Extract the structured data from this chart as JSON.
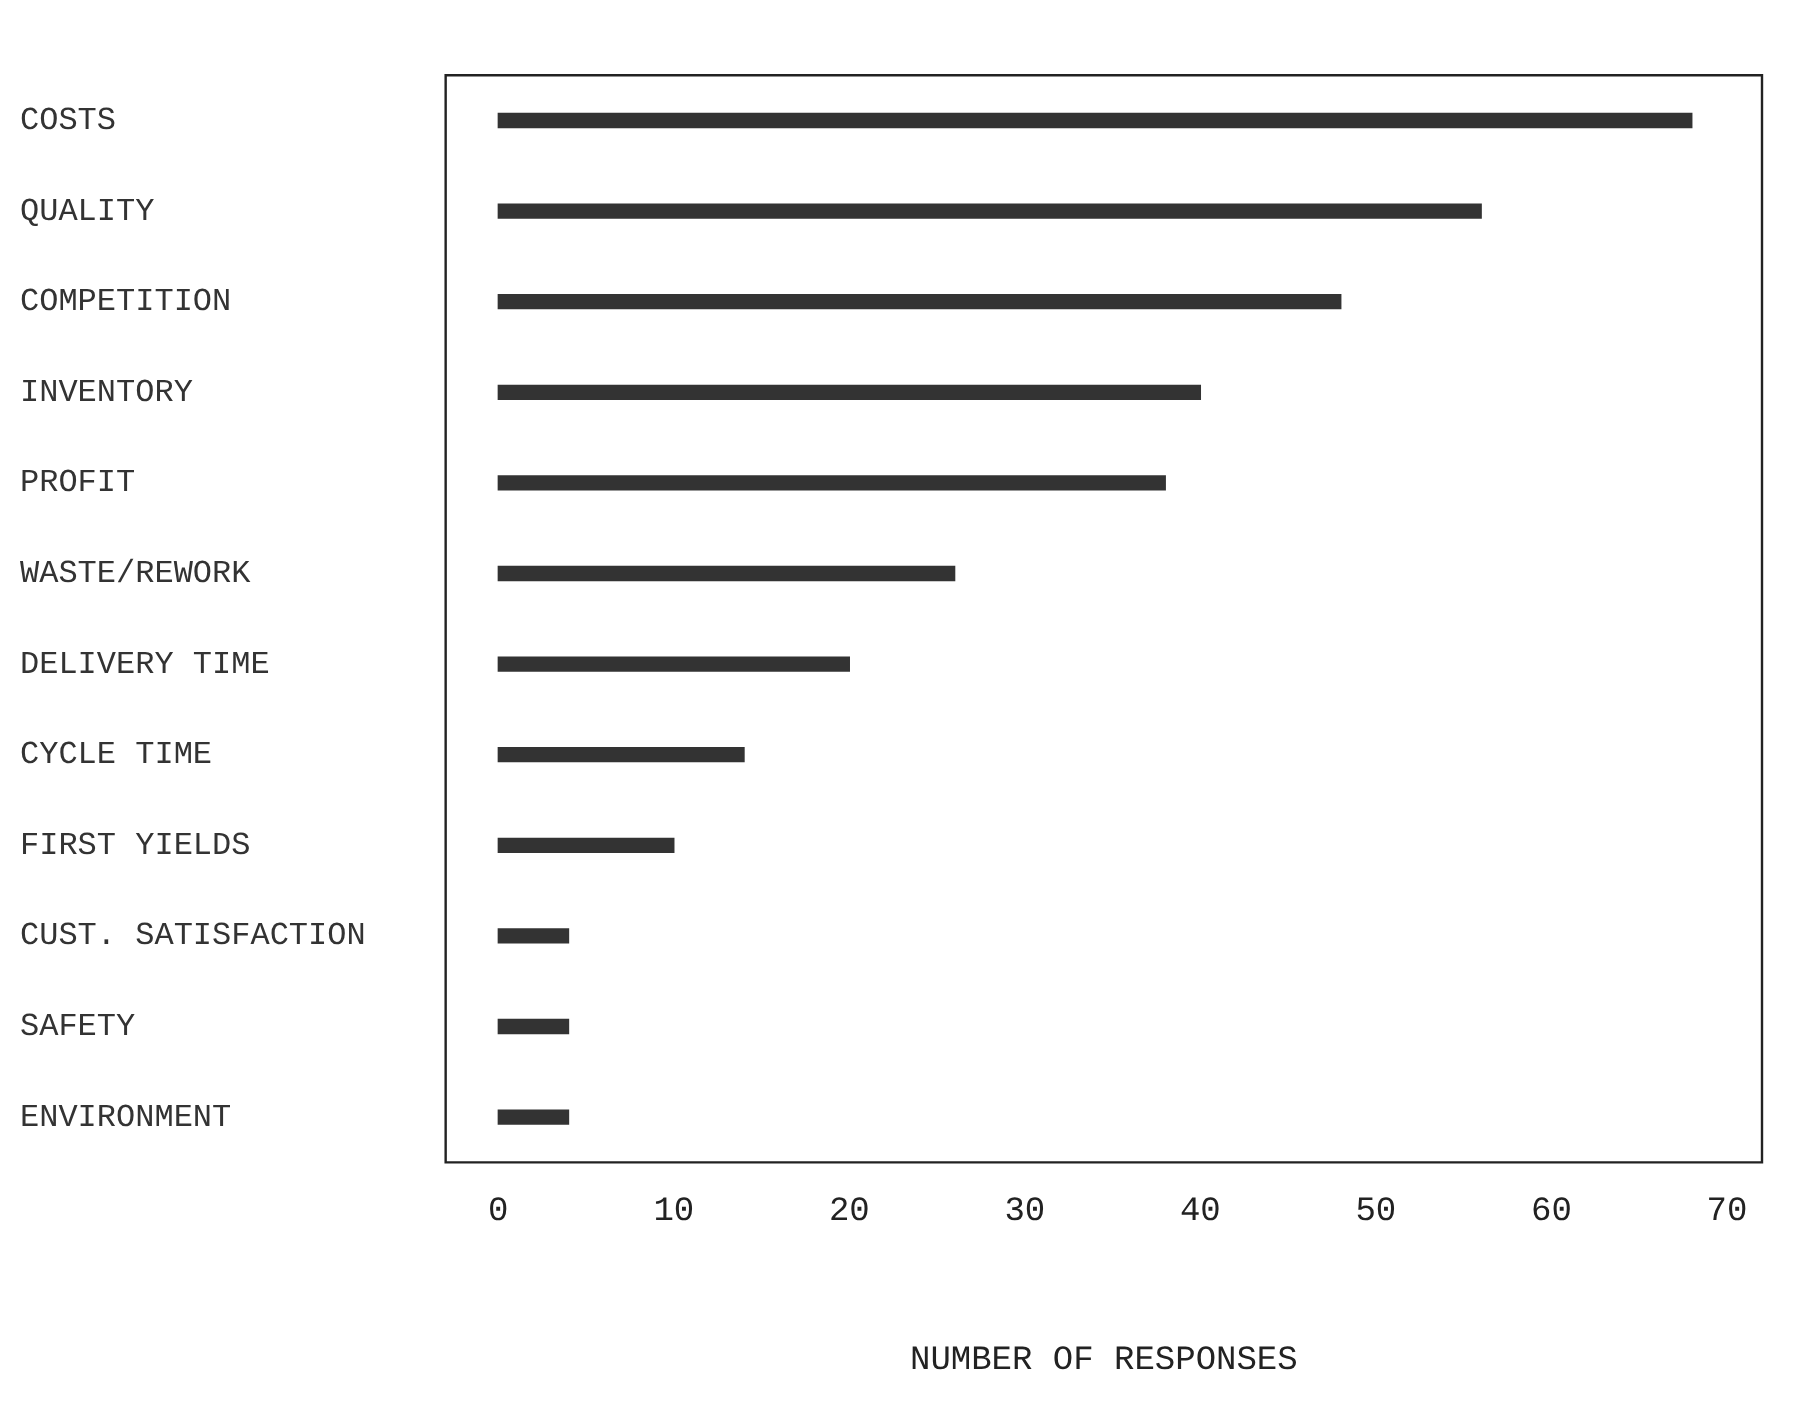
{
  "chart_data": {
    "type": "bar",
    "orientation": "horizontal",
    "categories": [
      "COSTS",
      "QUALITY",
      "COMPETITION",
      "INVENTORY",
      "PROFIT",
      "WASTE/REWORK",
      "DELIVERY TIME",
      "CYCLE TIME",
      "FIRST YIELDS",
      "CUST. SATISFACTION",
      "SAFETY",
      "ENVIRONMENT"
    ],
    "values": [
      68,
      56,
      48,
      40,
      38,
      26,
      20,
      14,
      10,
      4,
      4,
      4
    ],
    "color": "#333333",
    "xlabel": "NUMBER OF RESPONSES",
    "xlim": [
      -3,
      72
    ],
    "xticks": [
      0,
      10,
      20,
      30,
      40,
      50,
      60,
      70
    ],
    "grid": false,
    "legend": false
  }
}
